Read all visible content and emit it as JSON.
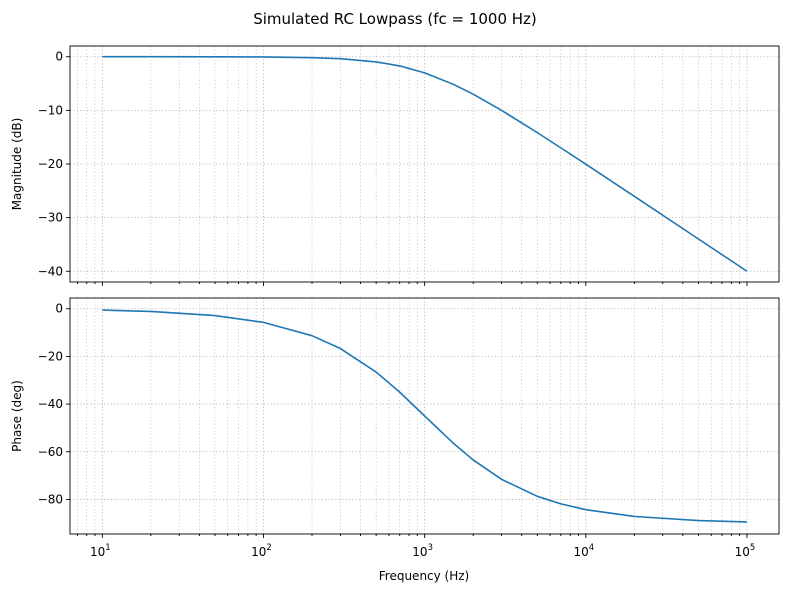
{
  "figure": {
    "title": "Simulated RC Lowpass (fc = 1000 Hz)"
  },
  "chart_data": [
    {
      "type": "line",
      "title": "",
      "xlabel": "",
      "ylabel": "Magnitude (dB)",
      "xscale": "log",
      "xlim": [
        6.3,
        158000
      ],
      "ylim": [
        -42,
        2
      ],
      "yticks": [
        0,
        -10,
        -20,
        -30,
        -40
      ],
      "grid": true,
      "grid_minor": true,
      "color": "#1f77b4",
      "series": [
        {
          "name": "Magnitude",
          "x": [
            10,
            20,
            50,
            100,
            200,
            300,
            500,
            700,
            1000,
            1500,
            2000,
            3000,
            5000,
            7000,
            10000,
            20000,
            50000,
            100000
          ],
          "values": [
            0.0,
            0.0,
            -0.01,
            -0.04,
            -0.17,
            -0.37,
            -0.97,
            -1.71,
            -3.01,
            -5.12,
            -6.99,
            -10.0,
            -14.15,
            -16.99,
            -20.04,
            -26.02,
            -33.98,
            -40.0
          ]
        }
      ]
    },
    {
      "type": "line",
      "title": "",
      "xlabel": "Frequency (Hz)",
      "ylabel": "Phase (deg)",
      "xscale": "log",
      "xlim": [
        6.3,
        158000
      ],
      "ylim": [
        -94.5,
        4.5
      ],
      "yticks": [
        0,
        -20,
        -40,
        -60,
        -80
      ],
      "xticks": [
        {
          "base": "10",
          "exp": "1",
          "value": 10
        },
        {
          "base": "10",
          "exp": "2",
          "value": 100
        },
        {
          "base": "10",
          "exp": "3",
          "value": 1000
        },
        {
          "base": "10",
          "exp": "4",
          "value": 10000
        },
        {
          "base": "10",
          "exp": "5",
          "value": 100000
        }
      ],
      "grid": true,
      "grid_minor": true,
      "color": "#1f77b4",
      "series": [
        {
          "name": "Phase",
          "x": [
            10,
            20,
            50,
            100,
            200,
            300,
            500,
            700,
            1000,
            1500,
            2000,
            3000,
            5000,
            7000,
            10000,
            20000,
            50000,
            100000
          ],
          "values": [
            -0.57,
            -1.15,
            -2.86,
            -5.71,
            -11.31,
            -16.7,
            -26.57,
            -34.99,
            -45.0,
            -56.31,
            -63.43,
            -71.57,
            -78.69,
            -81.87,
            -84.29,
            -87.14,
            -88.85,
            -89.43
          ]
        }
      ]
    }
  ]
}
